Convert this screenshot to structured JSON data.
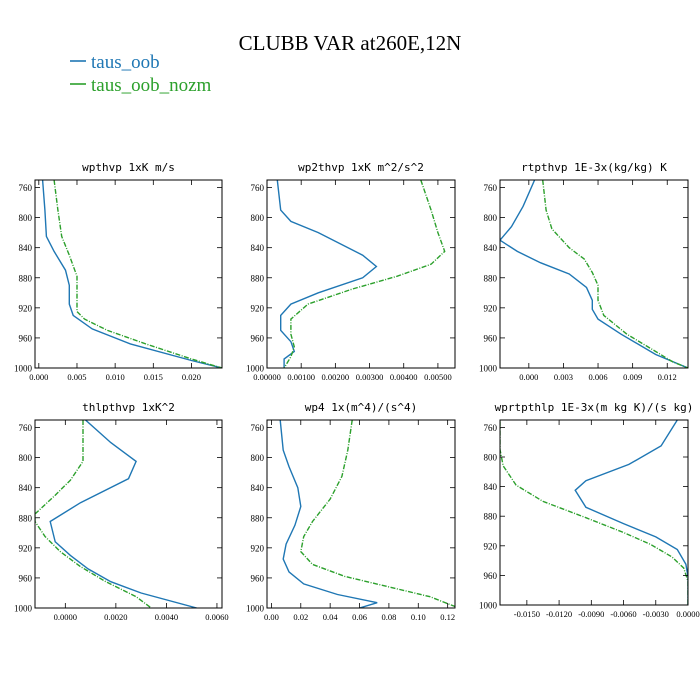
{
  "figure": {
    "title": "CLUBB VAR at260E,12N"
  },
  "legend": [
    {
      "label": "taus_oob",
      "color": "#1f77b4",
      "dashed": false
    },
    {
      "label": "taus_oob_nozm",
      "color": "#2ca02c",
      "dashed": true
    }
  ],
  "colors": {
    "series1": "#1f77b4",
    "series2": "#2ca02c",
    "axes": "#000000"
  },
  "chart_data": [
    {
      "type": "line",
      "title": "wpthvp  1xK m/s",
      "xlim": [
        -0.0005,
        0.024
      ],
      "ylim": [
        1000,
        750
      ],
      "xticks": [
        0.0,
        0.005,
        0.01,
        0.015,
        0.02
      ],
      "xtick_labels": [
        "0.000",
        "0.005",
        "0.010",
        "0.015",
        "0.020"
      ],
      "yticks": [
        760,
        800,
        840,
        880,
        920,
        960,
        1000
      ],
      "series": [
        {
          "name": "taus_oob",
          "dashed": false,
          "points": [
            [
              0.0005,
              750
            ],
            [
              0.0008,
              790
            ],
            [
              0.001,
              825
            ],
            [
              0.002,
              845
            ],
            [
              0.0035,
              870
            ],
            [
              0.004,
              890
            ],
            [
              0.004,
              915
            ],
            [
              0.0045,
              930
            ],
            [
              0.007,
              948
            ],
            [
              0.012,
              968
            ],
            [
              0.02,
              990
            ],
            [
              0.024,
              1000
            ]
          ]
        },
        {
          "name": "taus_oob_nozm",
          "dashed": true,
          "points": [
            [
              0.002,
              750
            ],
            [
              0.0025,
              790
            ],
            [
              0.003,
              825
            ],
            [
              0.004,
              850
            ],
            [
              0.005,
              878
            ],
            [
              0.005,
              900
            ],
            [
              0.005,
              925
            ],
            [
              0.006,
              935
            ],
            [
              0.009,
              950
            ],
            [
              0.014,
              968
            ],
            [
              0.02,
              988
            ],
            [
              0.024,
              1000
            ]
          ]
        }
      ]
    },
    {
      "type": "line",
      "title": "wp2thvp  1xK m^2/s^2",
      "xlim": [
        0.0,
        0.0055
      ],
      "ylim": [
        1000,
        750
      ],
      "xticks": [
        0.0,
        0.001,
        0.002,
        0.003,
        0.004,
        0.005
      ],
      "xtick_labels": [
        "0.00000",
        "0.00100",
        "0.00200",
        "0.00300",
        "0.00400",
        "0.00500"
      ],
      "yticks": [
        760,
        800,
        840,
        880,
        920,
        960,
        1000
      ],
      "series": [
        {
          "name": "taus_oob",
          "dashed": false,
          "points": [
            [
              0.0003,
              750
            ],
            [
              0.0004,
              790
            ],
            [
              0.0007,
              805
            ],
            [
              0.0015,
              820
            ],
            [
              0.0028,
              850
            ],
            [
              0.0032,
              865
            ],
            [
              0.0028,
              880
            ],
            [
              0.0015,
              900
            ],
            [
              0.0007,
              915
            ],
            [
              0.0004,
              930
            ],
            [
              0.0004,
              950
            ],
            [
              0.0007,
              965
            ],
            [
              0.0008,
              978
            ],
            [
              0.0005,
              988
            ],
            [
              0.0005,
              1000
            ]
          ]
        },
        {
          "name": "taus_oob_nozm",
          "dashed": true,
          "points": [
            [
              0.0045,
              750
            ],
            [
              0.0048,
              790
            ],
            [
              0.005,
              820
            ],
            [
              0.0052,
              845
            ],
            [
              0.0048,
              862
            ],
            [
              0.0038,
              878
            ],
            [
              0.0025,
              895
            ],
            [
              0.0012,
              915
            ],
            [
              0.0007,
              935
            ],
            [
              0.0007,
              955
            ],
            [
              0.0008,
              972
            ],
            [
              0.0007,
              985
            ],
            [
              0.0005,
              1000
            ]
          ]
        }
      ]
    },
    {
      "type": "line",
      "title": "rtpthvp  1E-3x(kg/kg) K",
      "xlim": [
        -0.0025,
        0.0138
      ],
      "ylim": [
        1000,
        750
      ],
      "xticks": [
        0.0,
        0.003,
        0.006,
        0.009,
        0.012
      ],
      "xtick_labels": [
        "0.000",
        "0.003",
        "0.006",
        "0.009",
        "0.012"
      ],
      "yticks": [
        760,
        800,
        840,
        880,
        920,
        960,
        1000
      ],
      "series": [
        {
          "name": "taus_oob",
          "dashed": false,
          "points": [
            [
              0.0005,
              750
            ],
            [
              -0.0005,
              785
            ],
            [
              -0.0015,
              812
            ],
            [
              -0.0025,
              830
            ],
            [
              -0.001,
              845
            ],
            [
              0.001,
              860
            ],
            [
              0.0035,
              875
            ],
            [
              0.005,
              893
            ],
            [
              0.0055,
              910
            ],
            [
              0.0055,
              922
            ],
            [
              0.006,
              935
            ],
            [
              0.008,
              955
            ],
            [
              0.011,
              982
            ],
            [
              0.0138,
              1000
            ]
          ]
        },
        {
          "name": "taus_oob_nozm",
          "dashed": true,
          "points": [
            [
              0.0012,
              750
            ],
            [
              0.0015,
              790
            ],
            [
              0.002,
              815
            ],
            [
              0.0035,
              840
            ],
            [
              0.0048,
              855
            ],
            [
              0.0055,
              873
            ],
            [
              0.006,
              890
            ],
            [
              0.006,
              910
            ],
            [
              0.0065,
              930
            ],
            [
              0.0085,
              955
            ],
            [
              0.011,
              978
            ],
            [
              0.0125,
              992
            ],
            [
              0.0138,
              1000
            ]
          ]
        }
      ]
    },
    {
      "type": "line",
      "title": "thlpthvp  1xK^2",
      "xlim": [
        -0.0012,
        0.0062
      ],
      "ylim": [
        1000,
        750
      ],
      "xticks": [
        0.0,
        0.002,
        0.004,
        0.006
      ],
      "xtick_labels": [
        "0.0000",
        "0.0020",
        "0.0040",
        "0.0060"
      ],
      "yticks": [
        760,
        800,
        840,
        880,
        920,
        960,
        1000
      ],
      "series": [
        {
          "name": "taus_oob",
          "dashed": false,
          "points": [
            [
              0.0008,
              750
            ],
            [
              0.0018,
              780
            ],
            [
              0.0028,
              805
            ],
            [
              0.0025,
              828
            ],
            [
              0.0006,
              860
            ],
            [
              -0.0006,
              885
            ],
            [
              -0.0004,
              912
            ],
            [
              0.0002,
              930
            ],
            [
              0.0009,
              948
            ],
            [
              0.0018,
              965
            ],
            [
              0.003,
              980
            ],
            [
              0.0052,
              1000
            ]
          ]
        },
        {
          "name": "taus_oob_nozm",
          "dashed": true,
          "points": [
            [
              0.0007,
              750
            ],
            [
              0.0007,
              780
            ],
            [
              0.0007,
              805
            ],
            [
              0.0002,
              830
            ],
            [
              -0.0004,
              850
            ],
            [
              -0.0012,
              875
            ],
            [
              -0.0012,
              885
            ],
            [
              -0.0008,
              905
            ],
            [
              -0.0002,
              925
            ],
            [
              0.0006,
              945
            ],
            [
              0.0016,
              965
            ],
            [
              0.0028,
              985
            ],
            [
              0.0034,
              1000
            ]
          ]
        }
      ]
    },
    {
      "type": "line",
      "title": "wp4  1x(m^4)/(s^4)",
      "xlim": [
        -0.003,
        0.125
      ],
      "ylim": [
        1000,
        750
      ],
      "xticks": [
        0.0,
        0.02,
        0.04,
        0.06,
        0.08,
        0.1,
        0.12
      ],
      "xtick_labels": [
        "0.00",
        "0.02",
        "0.04",
        "0.06",
        "0.08",
        "0.10",
        "0.12"
      ],
      "yticks": [
        760,
        800,
        840,
        880,
        920,
        960,
        1000
      ],
      "series": [
        {
          "name": "taus_oob",
          "dashed": false,
          "points": [
            [
              0.006,
              750
            ],
            [
              0.008,
              790
            ],
            [
              0.012,
              812
            ],
            [
              0.018,
              840
            ],
            [
              0.02,
              865
            ],
            [
              0.016,
              890
            ],
            [
              0.01,
              915
            ],
            [
              0.008,
              935
            ],
            [
              0.012,
              952
            ],
            [
              0.022,
              968
            ],
            [
              0.045,
              982
            ],
            [
              0.072,
              993
            ],
            [
              0.06,
              1000
            ],
            [
              0.055,
              1003
            ]
          ]
        },
        {
          "name": "taus_oob_nozm",
          "dashed": true,
          "points": [
            [
              0.055,
              750
            ],
            [
              0.052,
              790
            ],
            [
              0.048,
              825
            ],
            [
              0.04,
              855
            ],
            [
              0.028,
              885
            ],
            [
              0.022,
              905
            ],
            [
              0.02,
              925
            ],
            [
              0.028,
              942
            ],
            [
              0.05,
              958
            ],
            [
              0.08,
              972
            ],
            [
              0.108,
              985
            ],
            [
              0.125,
              998
            ]
          ]
        }
      ]
    },
    {
      "type": "line",
      "title": "wprtpthlp  1E-3x(m kg K)/(s kg)",
      "xlim": [
        -0.0175,
        0.0
      ],
      "ylim": [
        1000,
        750
      ],
      "xticks": [
        -0.015,
        -0.012,
        -0.009,
        -0.006,
        -0.003,
        0.0
      ],
      "xtick_labels": [
        "-0.0150",
        "-0.0120",
        "-0.0090",
        "-0.0060",
        "-0.0030",
        "0.0000"
      ],
      "yticks": [
        760,
        800,
        840,
        880,
        920,
        960,
        1000
      ],
      "series": [
        {
          "name": "taus_oob",
          "dashed": false,
          "points": [
            [
              -0.001,
              750
            ],
            [
              -0.0025,
              785
            ],
            [
              -0.0055,
              810
            ],
            [
              -0.0095,
              832
            ],
            [
              -0.0105,
              845
            ],
            [
              -0.0095,
              868
            ],
            [
              -0.006,
              890
            ],
            [
              -0.003,
              908
            ],
            [
              -0.001,
              925
            ],
            [
              -0.0002,
              945
            ],
            [
              0.0,
              962
            ],
            [
              0.0,
              1000
            ]
          ]
        },
        {
          "name": "taus_oob_nozm",
          "dashed": true,
          "points": [
            [
              -0.0175,
              752
            ],
            [
              -0.0175,
              790
            ],
            [
              -0.0172,
              812
            ],
            [
              -0.016,
              838
            ],
            [
              -0.0135,
              860
            ],
            [
              -0.0095,
              882
            ],
            [
              -0.006,
              902
            ],
            [
              -0.0035,
              918
            ],
            [
              -0.0015,
              935
            ],
            [
              -0.0004,
              950
            ],
            [
              0.0,
              968
            ],
            [
              0.0,
              1000
            ]
          ]
        }
      ]
    }
  ]
}
